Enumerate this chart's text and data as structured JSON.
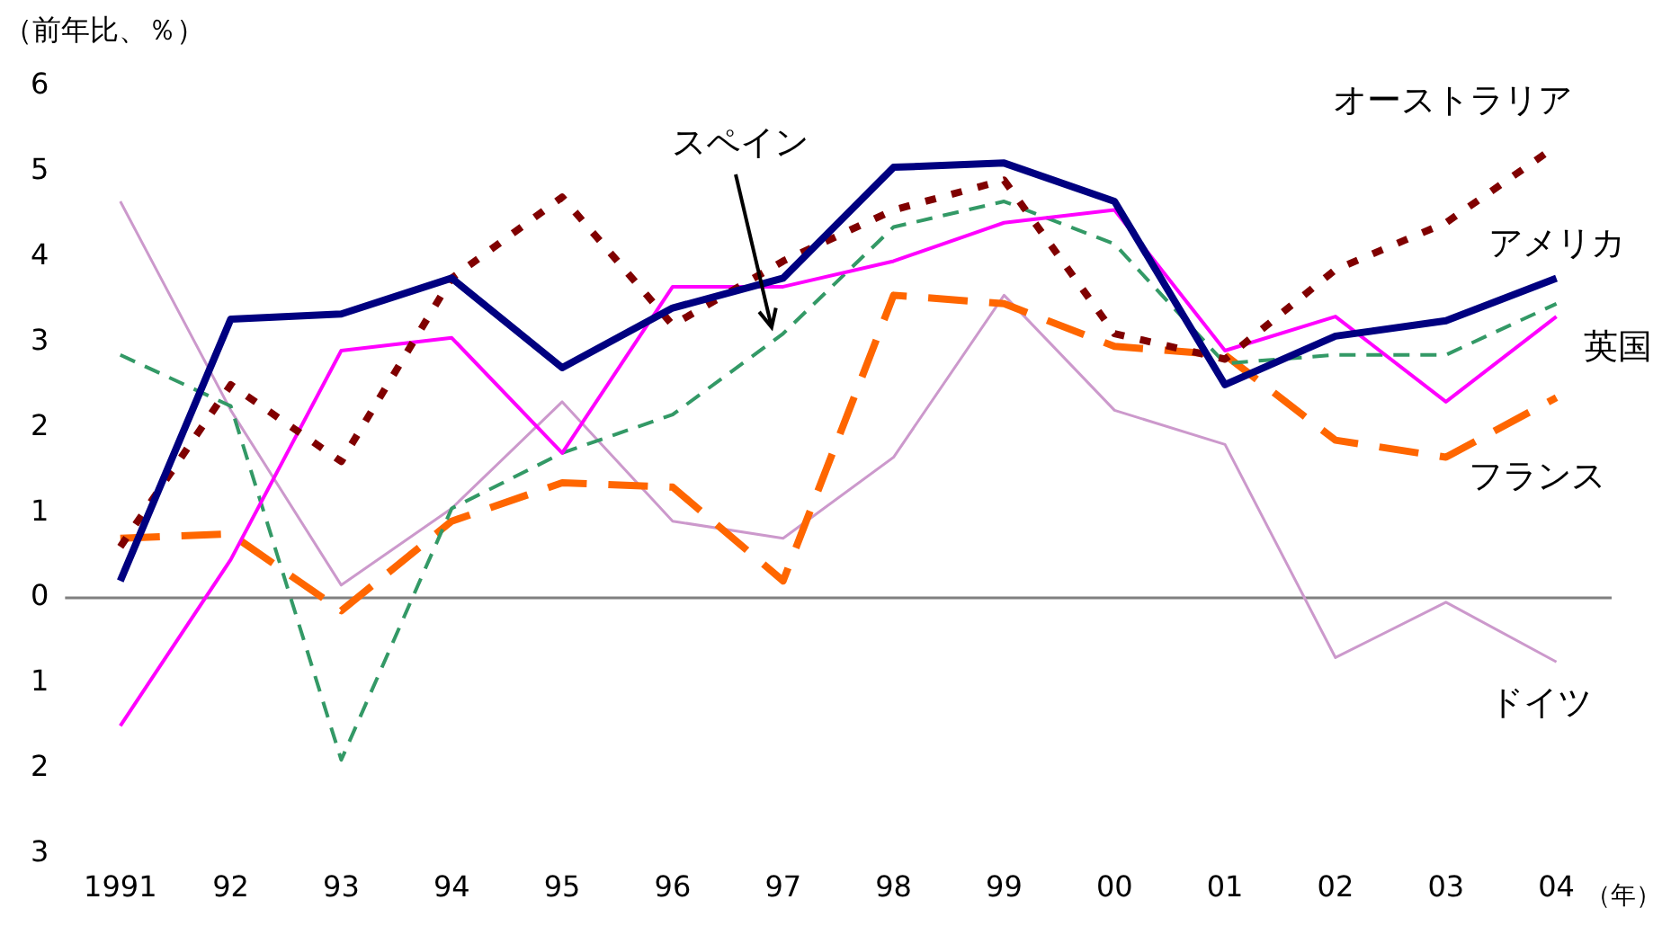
{
  "chart_data": {
    "type": "line",
    "ylabel": "（前年比、％）",
    "xlabel": "（年）",
    "categories": [
      "1991",
      "92",
      "93",
      "94",
      "95",
      "96",
      "97",
      "98",
      "99",
      "00",
      "01",
      "02",
      "03",
      "04"
    ],
    "ylim": [
      -3,
      6
    ],
    "yticks": [
      {
        "value": -3,
        "label": "3"
      },
      {
        "value": -2,
        "label": "2"
      },
      {
        "value": -1,
        "label": "1"
      },
      0,
      1,
      2,
      3,
      4,
      5,
      6
    ],
    "grid": false,
    "legend": false,
    "marker": "none",
    "ref_lines": [
      {
        "axis": "y",
        "value": 0,
        "color": "#808080"
      }
    ],
    "series": [
      {
        "name": "アメリカ",
        "color": "#000080",
        "line_style": "solid",
        "values": [
          0.2,
          3.27,
          3.33,
          3.75,
          2.7,
          3.4,
          3.75,
          5.05,
          5.1,
          4.65,
          2.5,
          3.07,
          3.25,
          3.75
        ]
      },
      {
        "name": "オーストラリア",
        "color": "#800000",
        "line_style": "dotted",
        "values": [
          0.6,
          2.5,
          1.6,
          3.75,
          4.7,
          3.2,
          3.95,
          4.55,
          4.9,
          3.1,
          2.8,
          3.85,
          4.4,
          5.3
        ]
      },
      {
        "name": "英国",
        "color": "#ff00ff",
        "line_style": "solid",
        "values": [
          -1.5,
          0.45,
          2.9,
          3.05,
          1.7,
          3.65,
          3.65,
          3.95,
          4.4,
          4.55,
          2.9,
          3.3,
          2.3,
          3.3
        ]
      },
      {
        "name": "スペイン",
        "color": "#339966",
        "line_style": "dashed",
        "values": [
          2.85,
          2.25,
          -1.9,
          1.05,
          1.7,
          2.15,
          3.1,
          4.35,
          4.65,
          4.15,
          2.75,
          2.85,
          2.85,
          3.45
        ]
      },
      {
        "name": "フランス",
        "color": "#ff6600",
        "line_style": "dashed",
        "values": [
          0.7,
          0.75,
          -0.15,
          0.9,
          1.35,
          1.3,
          0.2,
          3.55,
          3.45,
          2.95,
          2.85,
          1.85,
          1.65,
          2.35
        ]
      },
      {
        "name": "ドイツ",
        "color": "#cc99cc",
        "line_style": "solid",
        "values": [
          4.65,
          2.2,
          0.15,
          1.05,
          2.3,
          0.9,
          0.7,
          1.65,
          3.55,
          2.2,
          1.8,
          -0.7,
          -0.05,
          -0.75
        ]
      }
    ]
  }
}
